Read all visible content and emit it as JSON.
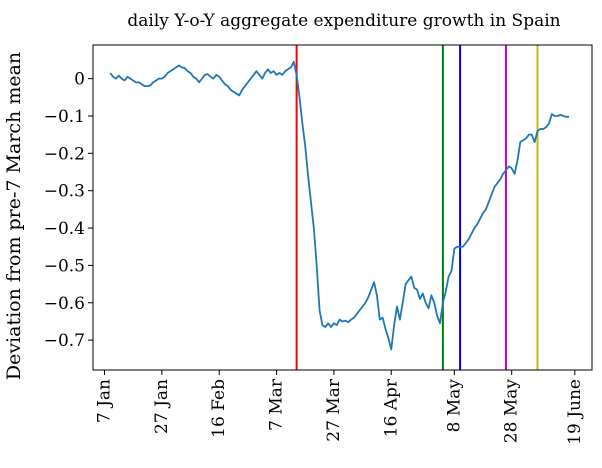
{
  "chart_data": {
    "type": "line",
    "title": "daily Y-o-Y aggregate expenditure growth in Spain",
    "ylabel": "Deviation from pre-7 March mean",
    "xlabel": "",
    "x_range": [
      "2020-01-03",
      "2020-06-25"
    ],
    "ylim": [
      -0.78,
      0.09
    ],
    "grid": false,
    "x_ticks": [
      {
        "date": "2020-01-07",
        "label": "7 Jan"
      },
      {
        "date": "2020-01-27",
        "label": "27 Jan"
      },
      {
        "date": "2020-02-16",
        "label": "16 Feb"
      },
      {
        "date": "2020-03-07",
        "label": "7 Mar"
      },
      {
        "date": "2020-03-27",
        "label": "27 Mar"
      },
      {
        "date": "2020-04-16",
        "label": "16 Apr"
      },
      {
        "date": "2020-05-08",
        "label": "8 May"
      },
      {
        "date": "2020-05-28",
        "label": "28 May"
      },
      {
        "date": "2020-06-19",
        "label": "19 June"
      }
    ],
    "y_ticks": [
      0,
      -0.1,
      -0.2,
      -0.3,
      -0.4,
      -0.5,
      -0.6,
      -0.7
    ],
    "y_tick_labels": [
      "0",
      "−0.1",
      "−0.2",
      "−0.3",
      "−0.4",
      "−0.5",
      "−0.6",
      "−0.7"
    ],
    "vertical_lines": [
      {
        "date": "2020-03-14",
        "color": "#ff0000"
      },
      {
        "date": "2020-05-04",
        "color": "#008000"
      },
      {
        "date": "2020-05-10",
        "color": "#0000ff"
      },
      {
        "date": "2020-05-26",
        "color": "#cc00cc"
      },
      {
        "date": "2020-06-06",
        "color": "#bfbf00"
      }
    ],
    "series": [
      {
        "color": "#1f77b4",
        "points": [
          [
            "2020-01-09",
            0.015
          ],
          [
            "2020-01-10",
            0.005
          ],
          [
            "2020-01-11",
            0.0
          ],
          [
            "2020-01-12",
            0.008
          ],
          [
            "2020-01-13",
            0.0
          ],
          [
            "2020-01-14",
            -0.005
          ],
          [
            "2020-01-15",
            0.005
          ],
          [
            "2020-01-16",
            0.0
          ],
          [
            "2020-01-17",
            -0.005
          ],
          [
            "2020-01-18",
            -0.01
          ],
          [
            "2020-01-19",
            -0.01
          ],
          [
            "2020-01-20",
            -0.015
          ],
          [
            "2020-01-21",
            -0.02
          ],
          [
            "2020-01-22",
            -0.02
          ],
          [
            "2020-01-23",
            -0.018
          ],
          [
            "2020-01-24",
            -0.01
          ],
          [
            "2020-01-25",
            -0.005
          ],
          [
            "2020-01-26",
            0.0
          ],
          [
            "2020-01-27",
            0.0
          ],
          [
            "2020-01-28",
            0.005
          ],
          [
            "2020-01-29",
            0.015
          ],
          [
            "2020-01-30",
            0.02
          ],
          [
            "2020-01-31",
            0.025
          ],
          [
            "2020-02-01",
            0.03
          ],
          [
            "2020-02-02",
            0.035
          ],
          [
            "2020-02-03",
            0.03
          ],
          [
            "2020-02-04",
            0.028
          ],
          [
            "2020-02-05",
            0.02
          ],
          [
            "2020-02-06",
            0.015
          ],
          [
            "2020-02-07",
            0.005
          ],
          [
            "2020-02-08",
            0.0
          ],
          [
            "2020-02-09",
            -0.01
          ],
          [
            "2020-02-10",
            0.0
          ],
          [
            "2020-02-11",
            0.01
          ],
          [
            "2020-02-12",
            0.012
          ],
          [
            "2020-02-13",
            0.005
          ],
          [
            "2020-02-14",
            0.0
          ],
          [
            "2020-02-15",
            0.01
          ],
          [
            "2020-02-16",
            0.005
          ],
          [
            "2020-02-17",
            -0.005
          ],
          [
            "2020-02-18",
            -0.015
          ],
          [
            "2020-02-19",
            -0.02
          ],
          [
            "2020-02-20",
            -0.03
          ],
          [
            "2020-02-21",
            -0.035
          ],
          [
            "2020-02-22",
            -0.04
          ],
          [
            "2020-02-23",
            -0.045
          ],
          [
            "2020-02-24",
            -0.03
          ],
          [
            "2020-02-25",
            -0.02
          ],
          [
            "2020-02-26",
            -0.01
          ],
          [
            "2020-02-27",
            0.0
          ],
          [
            "2020-02-28",
            0.01
          ],
          [
            "2020-02-29",
            0.02
          ],
          [
            "2020-03-01",
            0.01
          ],
          [
            "2020-03-02",
            0.0
          ],
          [
            "2020-03-03",
            0.015
          ],
          [
            "2020-03-04",
            0.025
          ],
          [
            "2020-03-05",
            0.015
          ],
          [
            "2020-03-06",
            0.02
          ],
          [
            "2020-03-07",
            0.01
          ],
          [
            "2020-03-08",
            0.015
          ],
          [
            "2020-03-09",
            0.01
          ],
          [
            "2020-03-10",
            0.02
          ],
          [
            "2020-03-11",
            0.025
          ],
          [
            "2020-03-12",
            0.03
          ],
          [
            "2020-03-13",
            0.045
          ],
          [
            "2020-03-14",
            0.01
          ],
          [
            "2020-03-15",
            -0.05
          ],
          [
            "2020-03-16",
            -0.12
          ],
          [
            "2020-03-17",
            -0.18
          ],
          [
            "2020-03-18",
            -0.26
          ],
          [
            "2020-03-19",
            -0.33
          ],
          [
            "2020-03-20",
            -0.4
          ],
          [
            "2020-03-21",
            -0.5
          ],
          [
            "2020-03-22",
            -0.62
          ],
          [
            "2020-03-23",
            -0.66
          ],
          [
            "2020-03-24",
            -0.665
          ],
          [
            "2020-03-25",
            -0.655
          ],
          [
            "2020-03-26",
            -0.665
          ],
          [
            "2020-03-27",
            -0.655
          ],
          [
            "2020-03-28",
            -0.66
          ],
          [
            "2020-03-29",
            -0.645
          ],
          [
            "2020-03-30",
            -0.65
          ],
          [
            "2020-03-31",
            -0.648
          ],
          [
            "2020-04-01",
            -0.652
          ],
          [
            "2020-04-02",
            -0.645
          ],
          [
            "2020-04-03",
            -0.64
          ],
          [
            "2020-04-04",
            -0.63
          ],
          [
            "2020-04-05",
            -0.62
          ],
          [
            "2020-04-06",
            -0.61
          ],
          [
            "2020-04-07",
            -0.6
          ],
          [
            "2020-04-08",
            -0.585
          ],
          [
            "2020-04-09",
            -0.565
          ],
          [
            "2020-04-10",
            -0.545
          ],
          [
            "2020-04-11",
            -0.58
          ],
          [
            "2020-04-12",
            -0.645
          ],
          [
            "2020-04-13",
            -0.64
          ],
          [
            "2020-04-14",
            -0.67
          ],
          [
            "2020-04-15",
            -0.695
          ],
          [
            "2020-04-16",
            -0.725
          ],
          [
            "2020-04-17",
            -0.66
          ],
          [
            "2020-04-18",
            -0.61
          ],
          [
            "2020-04-19",
            -0.645
          ],
          [
            "2020-04-20",
            -0.6
          ],
          [
            "2020-04-21",
            -0.55
          ],
          [
            "2020-04-22",
            -0.54
          ],
          [
            "2020-04-23",
            -0.53
          ],
          [
            "2020-04-24",
            -0.56
          ],
          [
            "2020-04-25",
            -0.565
          ],
          [
            "2020-04-26",
            -0.59
          ],
          [
            "2020-04-27",
            -0.575
          ],
          [
            "2020-04-28",
            -0.6
          ],
          [
            "2020-04-29",
            -0.615
          ],
          [
            "2020-04-30",
            -0.58
          ],
          [
            "2020-05-01",
            -0.6
          ],
          [
            "2020-05-02",
            -0.635
          ],
          [
            "2020-05-03",
            -0.655
          ],
          [
            "2020-05-04",
            -0.6
          ],
          [
            "2020-05-05",
            -0.57
          ],
          [
            "2020-05-06",
            -0.53
          ],
          [
            "2020-05-07",
            -0.515
          ],
          [
            "2020-05-08",
            -0.455
          ],
          [
            "2020-05-09",
            -0.45
          ],
          [
            "2020-05-10",
            -0.45
          ],
          [
            "2020-05-11",
            -0.45
          ],
          [
            "2020-05-12",
            -0.44
          ],
          [
            "2020-05-13",
            -0.43
          ],
          [
            "2020-05-14",
            -0.415
          ],
          [
            "2020-05-15",
            -0.4
          ],
          [
            "2020-05-16",
            -0.39
          ],
          [
            "2020-05-17",
            -0.375
          ],
          [
            "2020-05-18",
            -0.36
          ],
          [
            "2020-05-19",
            -0.35
          ],
          [
            "2020-05-20",
            -0.33
          ],
          [
            "2020-05-21",
            -0.31
          ],
          [
            "2020-05-22",
            -0.29
          ],
          [
            "2020-05-23",
            -0.28
          ],
          [
            "2020-05-24",
            -0.27
          ],
          [
            "2020-05-25",
            -0.255
          ],
          [
            "2020-05-26",
            -0.245
          ],
          [
            "2020-05-27",
            -0.235
          ],
          [
            "2020-05-28",
            -0.24
          ],
          [
            "2020-05-29",
            -0.255
          ],
          [
            "2020-05-30",
            -0.22
          ],
          [
            "2020-05-31",
            -0.17
          ],
          [
            "2020-06-01",
            -0.165
          ],
          [
            "2020-06-02",
            -0.16
          ],
          [
            "2020-06-03",
            -0.15
          ],
          [
            "2020-06-04",
            -0.15
          ],
          [
            "2020-06-05",
            -0.17
          ],
          [
            "2020-06-06",
            -0.14
          ],
          [
            "2020-06-07",
            -0.135
          ],
          [
            "2020-06-08",
            -0.135
          ],
          [
            "2020-06-09",
            -0.13
          ],
          [
            "2020-06-10",
            -0.12
          ],
          [
            "2020-06-11",
            -0.095
          ],
          [
            "2020-06-12",
            -0.1
          ],
          [
            "2020-06-13",
            -0.1
          ],
          [
            "2020-06-14",
            -0.097
          ],
          [
            "2020-06-15",
            -0.1
          ],
          [
            "2020-06-16",
            -0.102
          ],
          [
            "2020-06-17",
            -0.102
          ]
        ]
      }
    ]
  }
}
